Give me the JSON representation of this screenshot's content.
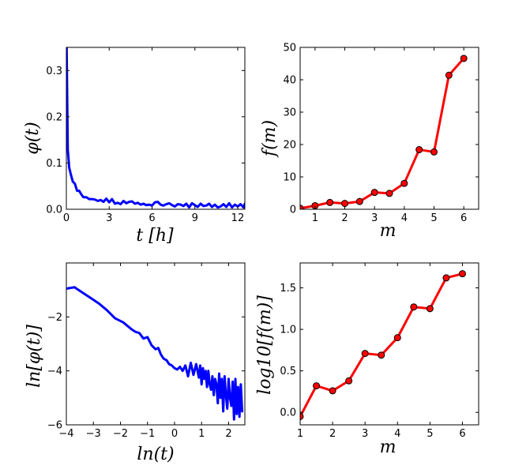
{
  "chart_data": [
    {
      "id": "phi_t",
      "type": "line",
      "title": "",
      "xlabel": "t [h]",
      "ylabel": "φ(t)",
      "xlim": [
        0,
        12.5
      ],
      "ylim": [
        0,
        0.35
      ],
      "xticks": [
        0,
        3,
        6,
        9,
        12
      ],
      "xtick_labels": [
        "0",
        "3",
        "6",
        "9",
        "12"
      ],
      "yticks": [
        0.0,
        0.1,
        0.2,
        0.3
      ],
      "ytick_labels": [
        "0.0",
        "0.1",
        "0.2",
        "0.3"
      ],
      "color": "#0000ff",
      "marker": false,
      "series": [
        {
          "name": "phi",
          "x": [
            0.02,
            0.1,
            0.2,
            0.3,
            0.45,
            0.6,
            0.75,
            0.9,
            1.05,
            1.2,
            1.4,
            1.6,
            1.8,
            2.0,
            2.2,
            2.4,
            2.6,
            2.8,
            3.0,
            3.2,
            3.4,
            3.6,
            3.8,
            4.0,
            4.2,
            4.4,
            4.6,
            4.8,
            5.0,
            5.2,
            5.4,
            5.6,
            5.8,
            6.0,
            6.2,
            6.4,
            6.6,
            6.8,
            7.0,
            7.2,
            7.4,
            7.6,
            7.8,
            8.0,
            8.2,
            8.4,
            8.6,
            8.8,
            9.0,
            9.2,
            9.4,
            9.6,
            9.8,
            10.0,
            10.2,
            10.4,
            10.6,
            10.8,
            11.0,
            11.2,
            11.4,
            11.6,
            11.8,
            12.0,
            12.2,
            12.4,
            12.5
          ],
          "y": [
            0.35,
            0.13,
            0.09,
            0.077,
            0.06,
            0.055,
            0.04,
            0.04,
            0.032,
            0.026,
            0.026,
            0.022,
            0.022,
            0.021,
            0.018,
            0.02,
            0.016,
            0.023,
            0.015,
            0.022,
            0.012,
            0.014,
            0.011,
            0.018,
            0.013,
            0.016,
            0.017,
            0.012,
            0.014,
            0.01,
            0.012,
            0.009,
            0.01,
            0.008,
            0.015,
            0.016,
            0.01,
            0.008,
            0.011,
            0.013,
            0.009,
            0.006,
            0.011,
            0.01,
            0.007,
            0.012,
            0.004,
            0.013,
            0.009,
            0.005,
            0.012,
            0.007,
            0.008,
            0.012,
            0.005,
            0.01,
            0.004,
            0.006,
            0.011,
            0.005,
            0.013,
            0.004,
            0.01,
            0.006,
            0.011,
            0.004,
            0.012
          ]
        }
      ]
    },
    {
      "id": "f_m",
      "type": "line",
      "title": "",
      "xlabel": "m",
      "ylabel": "f(m)",
      "xlim": [
        0.5,
        6.5
      ],
      "ylim": [
        0,
        50
      ],
      "xticks": [
        1,
        2,
        3,
        4,
        5,
        6
      ],
      "xtick_labels": [
        "1",
        "2",
        "3",
        "4",
        "5",
        "6"
      ],
      "yticks": [
        0,
        10,
        20,
        30,
        40,
        50
      ],
      "ytick_labels": [
        "0",
        "10",
        "20",
        "30",
        "40",
        "50"
      ],
      "color": "#ff0000",
      "marker": true,
      "series": [
        {
          "name": "f",
          "x": [
            0.5,
            1.0,
            1.5,
            2.0,
            2.5,
            3.0,
            3.5,
            4.0,
            4.5,
            5.0,
            5.5,
            6.0
          ],
          "y": [
            0.3,
            1.1,
            2.1,
            1.8,
            2.4,
            5.2,
            4.9,
            8.0,
            18.4,
            17.7,
            41.4,
            46.6
          ]
        }
      ]
    },
    {
      "id": "ln_phi",
      "type": "line",
      "title": "",
      "xlabel": "ln(t)",
      "ylabel": "ln[φ(t)]",
      "xlim": [
        -4.0,
        2.6
      ],
      "ylim": [
        -6.0,
        0.0
      ],
      "xticks": [
        -4,
        -3,
        -2,
        -1,
        0,
        1,
        2
      ],
      "xtick_labels": [
        "−4",
        "−3",
        "−2",
        "−1",
        "0",
        "1",
        "2"
      ],
      "yticks": [
        -6,
        -4,
        -2
      ],
      "ytick_labels": [
        "−6",
        "−4",
        "−2"
      ],
      "color": "#0000ff",
      "marker": false,
      "series": [
        {
          "name": "ln_phi",
          "x": [
            -4.0,
            -3.7,
            -3.4,
            -3.1,
            -2.8,
            -2.5,
            -2.2,
            -1.9,
            -1.6,
            -1.45,
            -1.3,
            -1.15,
            -1.0,
            -0.85,
            -0.7,
            -0.6,
            -0.5,
            -0.4,
            -0.3,
            -0.2,
            -0.1,
            0.0,
            0.1,
            0.2,
            0.3,
            0.4,
            0.5,
            0.6,
            0.7,
            0.8,
            0.9,
            0.95,
            1.0,
            1.05,
            1.1,
            1.15,
            1.2,
            1.25,
            1.3,
            1.35,
            1.4,
            1.45,
            1.5,
            1.55,
            1.6,
            1.65,
            1.7,
            1.75,
            1.8,
            1.85,
            1.9,
            1.95,
            2.0,
            2.05,
            2.1,
            2.15,
            2.2,
            2.25,
            2.3,
            2.35,
            2.4,
            2.45,
            2.5
          ],
          "y": [
            -0.95,
            -0.9,
            -1.1,
            -1.3,
            -1.5,
            -1.75,
            -2.05,
            -2.2,
            -2.45,
            -2.55,
            -2.6,
            -2.8,
            -2.75,
            -3.05,
            -3.2,
            -3.15,
            -3.4,
            -3.55,
            -3.6,
            -3.75,
            -3.8,
            -3.9,
            -3.95,
            -3.85,
            -4.0,
            -3.8,
            -4.2,
            -3.7,
            -4.15,
            -3.75,
            -4.25,
            -3.8,
            -4.5,
            -3.9,
            -4.3,
            -4.0,
            -4.6,
            -4.0,
            -4.5,
            -4.7,
            -4.2,
            -4.9,
            -4.3,
            -4.5,
            -5.2,
            -4.1,
            -5.0,
            -4.3,
            -5.5,
            -4.2,
            -4.9,
            -5.4,
            -4.3,
            -5.0,
            -5.3,
            -4.4,
            -5.8,
            -4.3,
            -5.6,
            -4.6,
            -5.7,
            -4.5,
            -5.5
          ]
        }
      ]
    },
    {
      "id": "log_f",
      "type": "line",
      "title": "",
      "xlabel": "m",
      "ylabel": "log10[f(m)]",
      "xlim": [
        1.0,
        6.5
      ],
      "ylim": [
        -0.15,
        1.8
      ],
      "xticks": [
        1,
        2,
        3,
        4,
        5,
        6
      ],
      "xtick_labels": [
        "1",
        "2",
        "3",
        "4",
        "5",
        "6"
      ],
      "yticks": [
        0.0,
        0.5,
        1.0,
        1.5
      ],
      "ytick_labels": [
        "0.0",
        "0.5",
        "1.0",
        "1.5"
      ],
      "color": "#ff0000",
      "marker": true,
      "series": [
        {
          "name": "log_f",
          "x": [
            1.0,
            1.5,
            2.0,
            2.5,
            3.0,
            3.5,
            4.0,
            4.5,
            5.0,
            5.5,
            6.0
          ],
          "y": [
            -0.05,
            0.32,
            0.26,
            0.38,
            0.71,
            0.69,
            0.9,
            1.27,
            1.25,
            1.62,
            1.67
          ]
        }
      ]
    }
  ]
}
